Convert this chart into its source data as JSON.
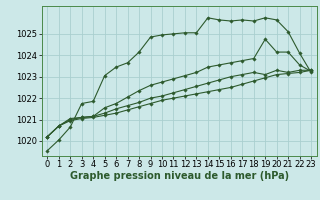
{
  "bg_color": "#cce8e8",
  "grid_color": "#aacfcf",
  "line_color": "#2d5a2d",
  "xlabel": "Graphe pression niveau de la mer (hPa)",
  "xlabel_fontsize": 7.0,
  "tick_fontsize": 6.0,
  "xlim": [
    -0.5,
    23.5
  ],
  "ylim": [
    1019.3,
    1026.3
  ],
  "yticks": [
    1020,
    1021,
    1022,
    1023,
    1024,
    1025
  ],
  "xticks": [
    0,
    1,
    2,
    3,
    4,
    5,
    6,
    7,
    8,
    9,
    10,
    11,
    12,
    13,
    14,
    15,
    16,
    17,
    18,
    19,
    20,
    21,
    22,
    23
  ],
  "series": [
    [
      1019.55,
      1020.05,
      1020.65,
      1021.75,
      1021.85,
      1023.05,
      1023.45,
      1023.65,
      1024.15,
      1024.85,
      1024.95,
      1025.0,
      1025.05,
      1025.05,
      1025.75,
      1025.65,
      1025.6,
      1025.65,
      1025.6,
      1025.75,
      1025.65,
      1025.1,
      1024.1,
      1023.2
    ],
    [
      1020.2,
      1020.7,
      1021.05,
      1021.1,
      1021.15,
      1021.55,
      1021.75,
      1022.05,
      1022.35,
      1022.6,
      1022.75,
      1022.9,
      1023.05,
      1023.2,
      1023.45,
      1023.55,
      1023.65,
      1023.75,
      1023.85,
      1024.75,
      1024.15,
      1024.15,
      1023.55,
      1023.25
    ],
    [
      1020.2,
      1020.7,
      1021.0,
      1021.1,
      1021.15,
      1021.3,
      1021.5,
      1021.65,
      1021.8,
      1022.0,
      1022.1,
      1022.25,
      1022.4,
      1022.55,
      1022.7,
      1022.85,
      1023.0,
      1023.1,
      1023.2,
      1023.1,
      1023.3,
      1023.2,
      1023.3,
      1023.3
    ],
    [
      1020.2,
      1020.7,
      1020.95,
      1021.05,
      1021.1,
      1021.2,
      1021.3,
      1021.45,
      1021.6,
      1021.75,
      1021.9,
      1022.0,
      1022.1,
      1022.2,
      1022.3,
      1022.4,
      1022.5,
      1022.65,
      1022.8,
      1022.95,
      1023.1,
      1023.15,
      1023.2,
      1023.3
    ]
  ]
}
